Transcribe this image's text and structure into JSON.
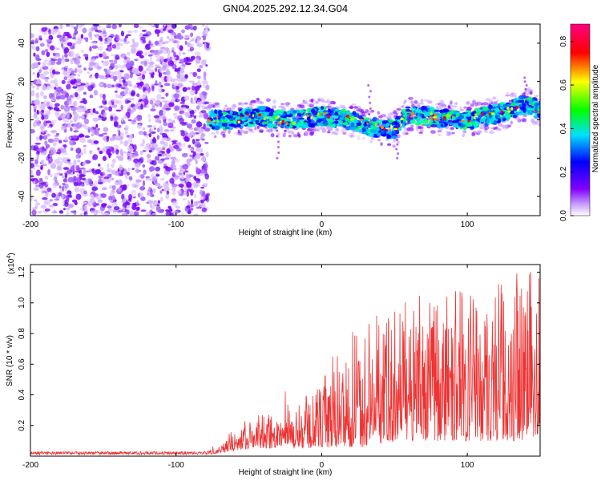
{
  "figure": {
    "title": "GN04.2025.292.12.34.G04"
  },
  "chart_data": [
    {
      "type": "heatmap",
      "xlabel": "Height of straight line (km)",
      "ylabel": "Frequency (Hz)",
      "xlim": [
        -200,
        150
      ],
      "ylim": [
        -50,
        50
      ],
      "xticks": [
        -200,
        -100,
        0,
        100
      ],
      "yticks": [
        -40,
        -20,
        0,
        20,
        40
      ],
      "colorbar": {
        "label": "Normalized spectral amplitude",
        "range": [
          0,
          0.88
        ],
        "ticks": [
          "0.0",
          "0.2",
          "0.4",
          "0.6",
          "0.8"
        ],
        "colormap": [
          "#ffffff",
          "#8000ff",
          "#0000ff",
          "#00ffff",
          "#00ff00",
          "#ffff00",
          "#ff0000",
          "#ff00c0"
        ]
      },
      "ridge": {
        "description": "frequency centre of strong returns vs height",
        "x": [
          -80,
          -60,
          -40,
          -30,
          -20,
          0,
          20,
          40,
          50,
          60,
          80,
          100,
          120,
          140,
          150
        ],
        "y": [
          0,
          0,
          2,
          0,
          0,
          2,
          0,
          -5,
          -5,
          3,
          1,
          0,
          3,
          8,
          5
        ]
      },
      "noise_region": {
        "x_range": [
          -200,
          -78
        ],
        "description": "scattered low-amplitude returns"
      }
    },
    {
      "type": "line",
      "xlabel": "Height of straight line (km)",
      "ylabel": "SNR (10 * v/v)",
      "scale_label": "(x10",
      "scale_exponent": "4",
      "xlim": [
        -200,
        150
      ],
      "ylim": [
        0,
        1.25
      ],
      "xticks": [
        -200,
        -100,
        0,
        100
      ],
      "yticks": [
        "0.2",
        "0.4",
        "0.6",
        "0.8",
        "1.0",
        "1.2"
      ],
      "series": [
        {
          "name": "SNR",
          "color": "#ee3333",
          "envelope": {
            "x": [
              -200,
              -80,
              -70,
              -50,
              -30,
              -25,
              -20,
              -10,
              0,
              10,
              20,
              30,
              40,
              50,
              60,
              80,
              100,
              120,
              140,
              150
            ],
            "min": [
              0.01,
              0.01,
              0.02,
              0.05,
              0.05,
              0.08,
              0.05,
              0.05,
              0.06,
              0.05,
              0.06,
              0.06,
              0.08,
              0.1,
              0.1,
              0.1,
              0.1,
              0.1,
              0.1,
              0.15
            ],
            "max": [
              0.03,
              0.03,
              0.1,
              0.25,
              0.3,
              0.45,
              0.3,
              0.4,
              0.5,
              0.7,
              0.8,
              0.9,
              0.95,
              0.97,
              1.05,
              1.05,
              1.1,
              1.15,
              1.25,
              1.2
            ]
          }
        }
      ]
    }
  ]
}
